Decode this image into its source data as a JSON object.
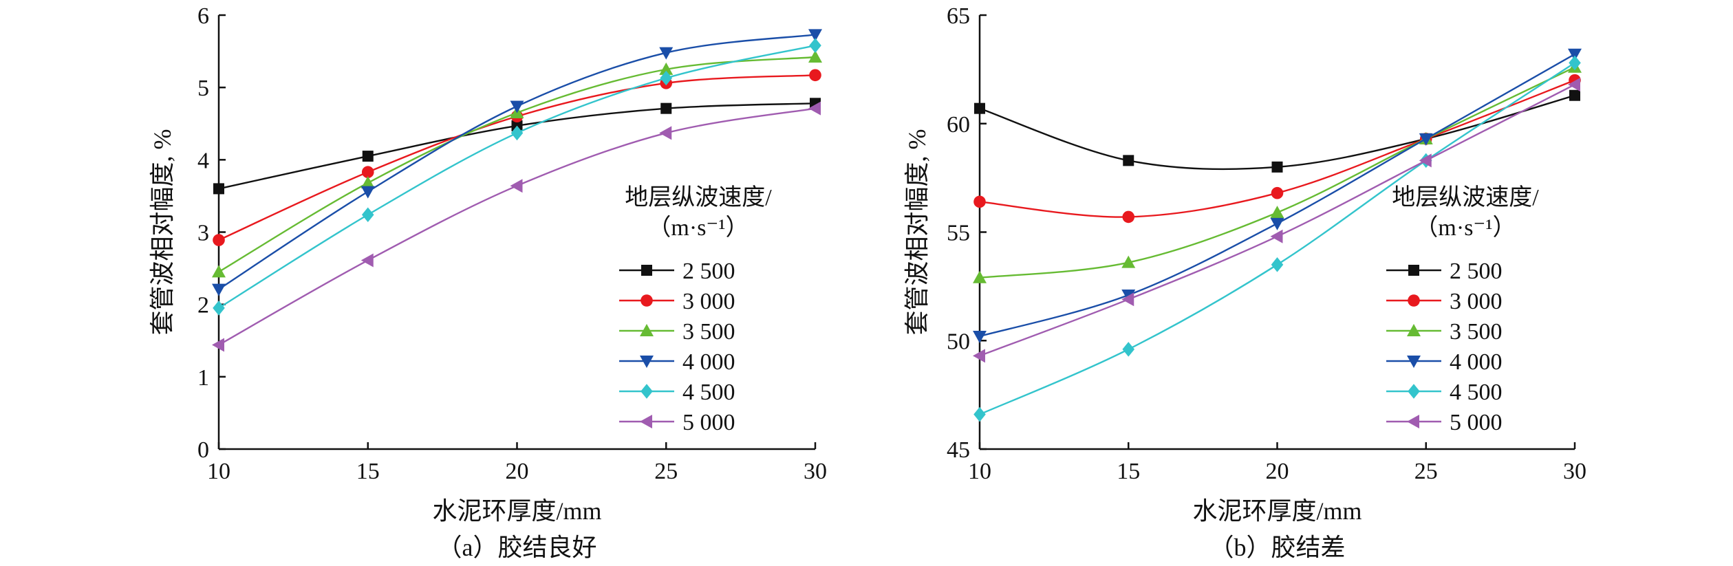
{
  "chart_data": [
    {
      "type": "line",
      "caption": "（a）胶结良好",
      "xlabel": "水泥环厚度/mm",
      "ylabel": "套管波相对幅度, %",
      "x": [
        10,
        15,
        20,
        25,
        30
      ],
      "xlim": [
        10,
        30
      ],
      "ylim": [
        0,
        6
      ],
      "xticks": [
        "10",
        "15",
        "20",
        "25",
        "30"
      ],
      "yticks": [
        "0",
        "1",
        "2",
        "3",
        "4",
        "5",
        "6"
      ],
      "legend_title": [
        "地层纵波速度/",
        "（m·s⁻¹）"
      ],
      "legend_position": "right",
      "series": [
        {
          "name": "2 500",
          "color": "#111111",
          "marker": "square",
          "values": [
            3.6,
            4.05,
            4.47,
            4.71,
            4.78
          ]
        },
        {
          "name": "3 000",
          "color": "#e8191e",
          "marker": "circle",
          "values": [
            2.89,
            3.83,
            4.6,
            5.06,
            5.17
          ]
        },
        {
          "name": "3 500",
          "color": "#66bb33",
          "marker": "triangle-up",
          "values": [
            2.45,
            3.68,
            4.65,
            5.25,
            5.42
          ]
        },
        {
          "name": "4 000",
          "color": "#1a4ea8",
          "marker": "triangle-down",
          "values": [
            2.21,
            3.56,
            4.74,
            5.48,
            5.73
          ]
        },
        {
          "name": "4 500",
          "color": "#33c4cc",
          "marker": "diamond",
          "values": [
            1.95,
            3.24,
            4.37,
            5.13,
            5.58
          ]
        },
        {
          "name": "5 000",
          "color": "#a05cb0",
          "marker": "triangle-left",
          "values": [
            1.44,
            2.61,
            3.64,
            4.37,
            4.71
          ]
        }
      ]
    },
    {
      "type": "line",
      "caption": "（b）胶结差",
      "xlabel": "水泥环厚度/mm",
      "ylabel": "套管波相对幅度, %",
      "x": [
        10,
        15,
        20,
        25,
        30
      ],
      "xlim": [
        10,
        30
      ],
      "ylim": [
        45,
        65
      ],
      "xticks": [
        "10",
        "15",
        "20",
        "25",
        "30"
      ],
      "yticks": [
        "45",
        "50",
        "55",
        "60",
        "65"
      ],
      "legend_title": [
        "地层纵波速度/",
        "（m·s⁻¹）"
      ],
      "legend_position": "right",
      "series": [
        {
          "name": "2 500",
          "color": "#111111",
          "marker": "square",
          "values": [
            60.7,
            58.3,
            58.0,
            59.3,
            61.3
          ]
        },
        {
          "name": "3 000",
          "color": "#e8191e",
          "marker": "circle",
          "values": [
            56.4,
            55.7,
            56.8,
            59.3,
            62.0
          ]
        },
        {
          "name": "3 500",
          "color": "#66bb33",
          "marker": "triangle-up",
          "values": [
            52.9,
            53.6,
            55.9,
            59.3,
            62.6
          ]
        },
        {
          "name": "4 000",
          "color": "#1a4ea8",
          "marker": "triangle-down",
          "values": [
            50.2,
            52.1,
            55.4,
            59.3,
            63.2
          ]
        },
        {
          "name": "4 500",
          "color": "#33c4cc",
          "marker": "diamond",
          "values": [
            46.6,
            49.6,
            53.5,
            58.3,
            62.8
          ]
        },
        {
          "name": "5 000",
          "color": "#a05cb0",
          "marker": "triangle-left",
          "values": [
            49.3,
            51.9,
            54.8,
            58.3,
            61.8
          ]
        }
      ]
    }
  ]
}
